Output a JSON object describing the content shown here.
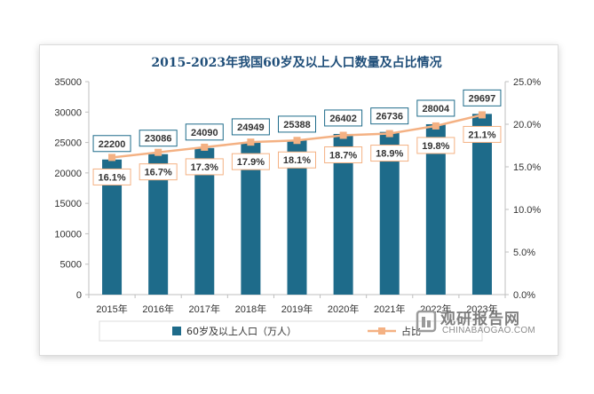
{
  "colors": {
    "bar": "#1e6b8a",
    "line": "#f4b183",
    "marker": "#f4b183",
    "bar_label_border": "#1e6b8a",
    "ratio_label_border": "#f4b183",
    "title": "#1f4e79"
  },
  "chart_data": {
    "type": "bar",
    "title": "2015-2023年我国60岁及以上人口数量及占比情况",
    "categories": [
      "2015年",
      "2016年",
      "2017年",
      "2018年",
      "2019年",
      "2020年",
      "2021年",
      "2022年",
      "2023年"
    ],
    "series": [
      {
        "name": "60岁及以上人口（万人）",
        "type": "bar",
        "axis": "left",
        "values": [
          22200,
          23086,
          24090,
          24949,
          25388,
          26402,
          26736,
          28004,
          29697
        ],
        "labels": [
          "22200",
          "23086",
          "24090",
          "24949",
          "25388",
          "26402",
          "26736",
          "28004",
          "29697"
        ]
      },
      {
        "name": "占比",
        "type": "line",
        "axis": "right",
        "values": [
          16.1,
          16.7,
          17.3,
          17.9,
          18.1,
          18.7,
          18.9,
          19.8,
          21.1
        ],
        "labels": [
          "16.1%",
          "16.7%",
          "17.3%",
          "17.9%",
          "18.1%",
          "18.7%",
          "18.9%",
          "19.8%",
          "21.1%"
        ]
      }
    ],
    "y_left": {
      "ylim": [
        0,
        35000
      ],
      "ticks": [
        "0",
        "5000",
        "10000",
        "15000",
        "20000",
        "25000",
        "30000",
        "35000"
      ]
    },
    "y_right": {
      "ylim": [
        0,
        25
      ],
      "ticks": [
        "0.0%",
        "5.0%",
        "10.0%",
        "15.0%",
        "20.0%",
        "25.0%"
      ]
    },
    "grid": false,
    "legend": {
      "position": "bottom"
    }
  },
  "watermark": {
    "title": "观研报告网",
    "url": "CHINABAOGAO.COM"
  }
}
